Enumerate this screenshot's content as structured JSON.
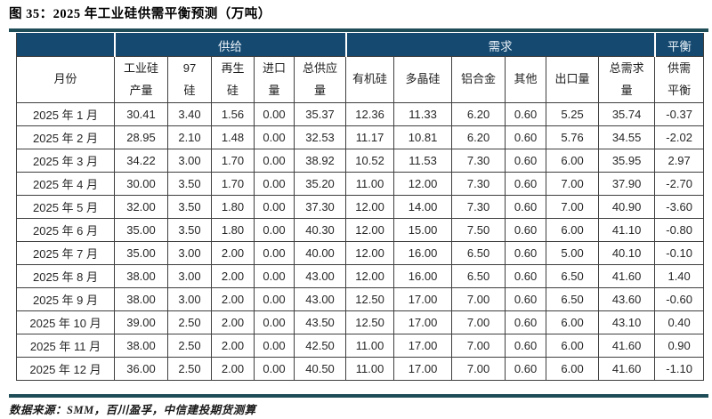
{
  "page": {
    "title": "图 35：2025 年工业硅供需平衡预测（万吨）",
    "source_note": "数据来源：SMM，百川盈孚，中信建投期货测算"
  },
  "colors": {
    "header_bg": "#154970",
    "header_text": "#e8f1f8",
    "rule": "#1E4D58",
    "grid_border": "#3f3f3f",
    "body_text": "#262626"
  },
  "table": {
    "month_header": "月份",
    "groups": [
      {
        "label": "供给"
      },
      {
        "label": "需求"
      },
      {
        "label": "平衡"
      }
    ],
    "columns": [
      "工业硅\n产量",
      "97\n硅",
      "再生\n硅",
      "进口\n量",
      "总供应\n量",
      "有机硅",
      "多晶硅",
      "铝合金",
      "其他",
      "出口量",
      "总需求\n量",
      "供需\n平衡"
    ],
    "rows": [
      {
        "month": "2025 年 1 月",
        "values": [
          "30.41",
          "3.40",
          "1.56",
          "0.00",
          "35.37",
          "12.36",
          "11.33",
          "6.20",
          "0.60",
          "5.25",
          "35.74",
          "-0.37"
        ]
      },
      {
        "month": "2025 年 2 月",
        "values": [
          "28.95",
          "2.10",
          "1.48",
          "0.00",
          "32.53",
          "11.17",
          "10.81",
          "6.20",
          "0.60",
          "5.76",
          "34.55",
          "-2.02"
        ]
      },
      {
        "month": "2025 年 3 月",
        "values": [
          "34.22",
          "3.00",
          "1.70",
          "0.00",
          "38.92",
          "10.52",
          "11.53",
          "7.30",
          "0.60",
          "6.00",
          "35.95",
          "2.97"
        ]
      },
      {
        "month": "2025 年 4 月",
        "values": [
          "30.00",
          "3.50",
          "1.70",
          "0.00",
          "35.20",
          "11.00",
          "12.00",
          "7.30",
          "0.60",
          "7.00",
          "37.90",
          "-2.70"
        ]
      },
      {
        "month": "2025 年 5 月",
        "values": [
          "32.00",
          "3.50",
          "1.80",
          "0.00",
          "37.30",
          "12.00",
          "14.00",
          "7.30",
          "0.60",
          "7.00",
          "40.90",
          "-3.60"
        ]
      },
      {
        "month": "2025 年 6 月",
        "values": [
          "35.00",
          "3.50",
          "1.80",
          "0.00",
          "40.30",
          "12.00",
          "15.00",
          "7.50",
          "0.60",
          "6.00",
          "41.10",
          "-0.80"
        ]
      },
      {
        "month": "2025 年 7 月",
        "values": [
          "35.00",
          "3.00",
          "2.00",
          "0.00",
          "40.00",
          "12.00",
          "16.00",
          "6.50",
          "0.60",
          "5.00",
          "40.10",
          "-0.10"
        ]
      },
      {
        "month": "2025 年 8 月",
        "values": [
          "38.00",
          "3.00",
          "2.00",
          "0.00",
          "43.00",
          "12.00",
          "16.00",
          "6.50",
          "0.60",
          "6.50",
          "41.60",
          "1.40"
        ]
      },
      {
        "month": "2025 年 9 月",
        "values": [
          "38.00",
          "3.00",
          "2.00",
          "0.00",
          "43.00",
          "12.50",
          "17.00",
          "7.00",
          "0.60",
          "6.50",
          "43.60",
          "-0.60"
        ]
      },
      {
        "month": "2025 年 10 月",
        "values": [
          "39.00",
          "2.50",
          "2.00",
          "0.00",
          "43.50",
          "12.50",
          "17.00",
          "7.00",
          "0.60",
          "6.00",
          "43.10",
          "0.40"
        ]
      },
      {
        "month": "2025 年 11 月",
        "values": [
          "38.00",
          "2.50",
          "2.00",
          "0.00",
          "42.50",
          "11.00",
          "17.00",
          "7.00",
          "0.60",
          "6.00",
          "41.60",
          "0.90"
        ]
      },
      {
        "month": "2025 年 12 月",
        "values": [
          "36.00",
          "2.50",
          "2.00",
          "0.00",
          "40.50",
          "11.00",
          "17.00",
          "7.00",
          "0.60",
          "6.00",
          "41.60",
          "-1.10"
        ]
      }
    ]
  }
}
